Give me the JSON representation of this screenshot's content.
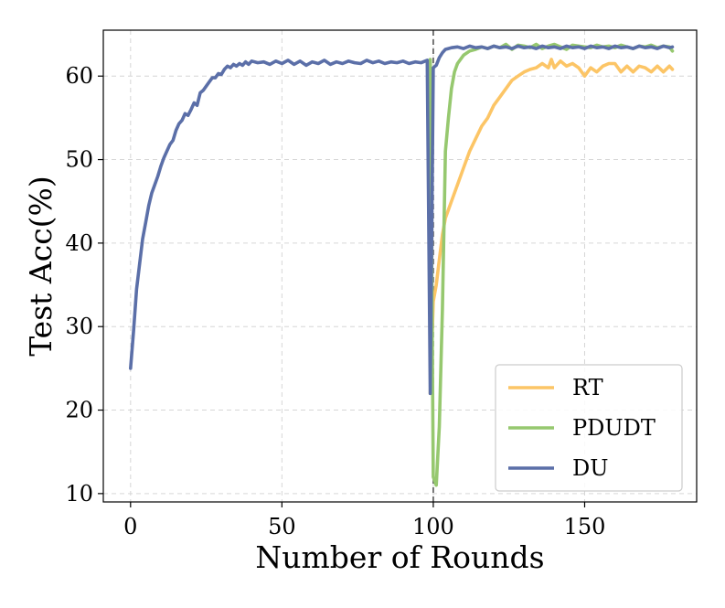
{
  "chart_data": {
    "type": "line",
    "title": "",
    "xlabel": "Number of Rounds",
    "ylabel": "Test Acc(%)",
    "xlim": [
      -9,
      187
    ],
    "ylim": [
      9,
      65.5
    ],
    "xticks": [
      0,
      50,
      100,
      150
    ],
    "yticks": [
      10,
      20,
      30,
      40,
      50,
      60
    ],
    "xtick_labels": [
      "0",
      "50",
      "100",
      "150"
    ],
    "ytick_labels": [
      "10",
      "20",
      "30",
      "40",
      "50",
      "60"
    ],
    "grid": true,
    "vline_x": 100,
    "legend": {
      "position": "bottom-right",
      "entries": [
        "RT",
        "PDUDT",
        "DU"
      ]
    },
    "series": [
      {
        "name": "RT",
        "color": "#fcc566",
        "x": [
          99,
          100,
          101,
          102,
          103,
          104,
          105,
          106,
          108,
          110,
          112,
          114,
          116,
          118,
          120,
          122,
          124,
          126,
          128,
          130,
          132,
          134,
          136,
          138,
          139,
          140,
          142,
          144,
          146,
          148,
          150,
          152,
          154,
          156,
          158,
          160,
          162,
          164,
          166,
          168,
          170,
          172,
          174,
          176,
          178,
          179
        ],
        "y": [
          22,
          33,
          35,
          38,
          41,
          43,
          44,
          45,
          47,
          49,
          51,
          52.5,
          54,
          55,
          56.5,
          57.5,
          58.5,
          59.5,
          60,
          60.5,
          60.8,
          61,
          61.5,
          61,
          62,
          61,
          61.8,
          61.2,
          61.5,
          61,
          60,
          61,
          60.5,
          61.2,
          61.5,
          61.5,
          60.5,
          61.2,
          60.5,
          61.2,
          61,
          60.5,
          61.2,
          60.5,
          61.2,
          60.8
        ]
      },
      {
        "name": "PDUDT",
        "color": "#96c86f",
        "x": [
          99,
          100,
          101,
          102,
          103,
          104,
          105,
          106,
          107,
          108,
          110,
          112,
          114,
          116,
          118,
          120,
          122,
          124,
          126,
          128,
          130,
          132,
          134,
          136,
          138,
          140,
          142,
          144,
          146,
          148,
          150,
          152,
          154,
          156,
          158,
          160,
          162,
          164,
          166,
          168,
          170,
          172,
          174,
          176,
          178,
          179
        ],
        "y": [
          62,
          12,
          11,
          18,
          32,
          51,
          55,
          58.5,
          60.5,
          61.5,
          62.5,
          63,
          63.2,
          63.5,
          63.3,
          63.6,
          63.4,
          63.8,
          63.2,
          63.7,
          63.6,
          63.4,
          63.8,
          63.3,
          63.6,
          63.8,
          63.5,
          63.2,
          63.7,
          63.6,
          63.5,
          63.4,
          63.7,
          63.5,
          63.6,
          63.4,
          63.7,
          63.5,
          63.3,
          63.6,
          63.5,
          63.7,
          63.4,
          63.6,
          63.5,
          63.0
        ]
      },
      {
        "name": "DU",
        "color": "#5b6fa8",
        "x": [
          0,
          1,
          2,
          3,
          4,
          5,
          6,
          7,
          8,
          9,
          10,
          11,
          12,
          13,
          14,
          15,
          16,
          17,
          18,
          19,
          20,
          21,
          22,
          23,
          24,
          25,
          26,
          27,
          28,
          29,
          30,
          31,
          32,
          33,
          34,
          35,
          36,
          37,
          38,
          39,
          40,
          42,
          44,
          46,
          48,
          50,
          52,
          54,
          56,
          58,
          60,
          62,
          64,
          66,
          68,
          70,
          72,
          74,
          76,
          78,
          80,
          82,
          84,
          86,
          88,
          90,
          92,
          94,
          96,
          98,
          99,
          100,
          101,
          102,
          103,
          104,
          105,
          106,
          108,
          110,
          112,
          114,
          116,
          118,
          120,
          122,
          124,
          126,
          128,
          130,
          132,
          134,
          136,
          138,
          140,
          142,
          144,
          146,
          148,
          150,
          152,
          154,
          156,
          158,
          160,
          162,
          164,
          166,
          168,
          170,
          172,
          174,
          176,
          178,
          179
        ],
        "y": [
          25,
          29.5,
          34.5,
          37.5,
          40.5,
          42.5,
          44.5,
          46,
          47,
          48,
          49.2,
          50.2,
          51,
          51.8,
          52.3,
          53.5,
          54.3,
          54.7,
          55.5,
          55.3,
          56,
          56.8,
          56.5,
          58,
          58.3,
          58.8,
          59.3,
          59.8,
          59.8,
          60.3,
          60.2,
          60.8,
          61.2,
          61,
          61.4,
          61.2,
          61.5,
          61.3,
          61.7,
          61.4,
          61.8,
          61.6,
          61.7,
          61.4,
          61.8,
          61.5,
          61.9,
          61.4,
          61.8,
          61.3,
          61.7,
          61.5,
          61.9,
          61.4,
          61.7,
          61.5,
          61.8,
          61.6,
          61.5,
          61.9,
          61.6,
          61.8,
          61.5,
          61.7,
          61.6,
          61.8,
          61.5,
          61.7,
          61.6,
          61.9,
          22,
          61,
          61.3,
          62.2,
          62.8,
          63.2,
          63.3,
          63.4,
          63.5,
          63.3,
          63.6,
          63.4,
          63.5,
          63.3,
          63.6,
          63.4,
          63.5,
          63.3,
          63.6,
          63.4,
          63.5,
          63.3,
          63.6,
          63.4,
          63.5,
          63.3,
          63.6,
          63.4,
          63.5,
          63.3,
          63.6,
          63.4,
          63.5,
          63.3,
          63.6,
          63.4,
          63.5,
          63.3,
          63.6,
          63.4,
          63.5,
          63.3,
          63.6,
          63.4,
          63.5
        ]
      }
    ]
  }
}
